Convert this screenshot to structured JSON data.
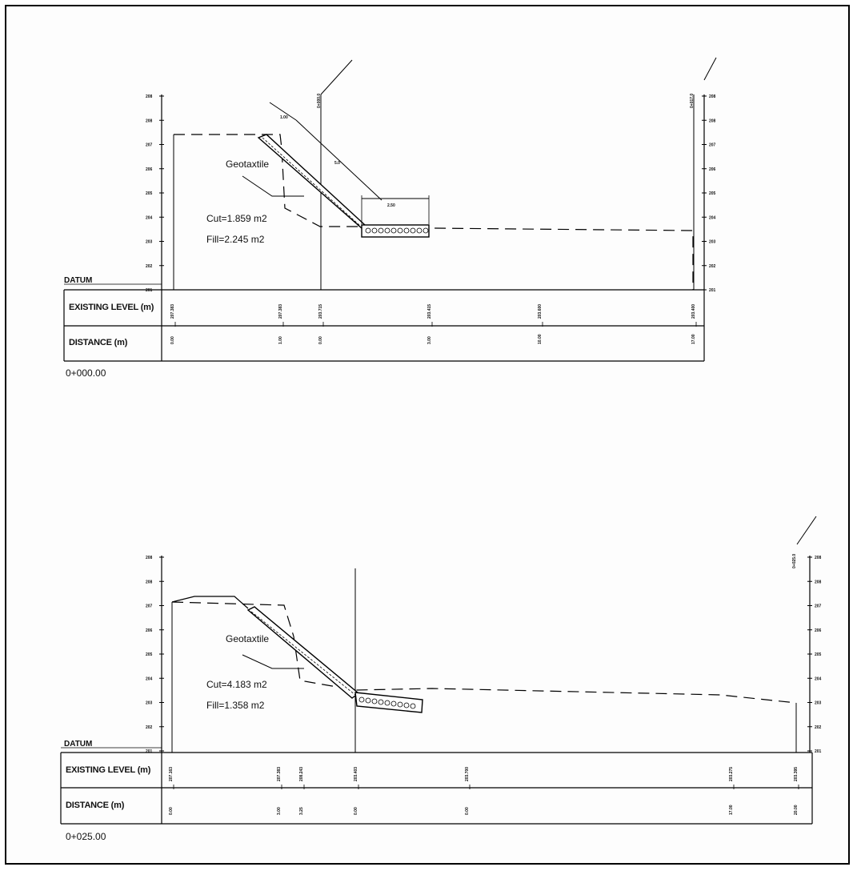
{
  "sections": [
    {
      "chainage": "0+000.00",
      "datum_label": "DATUM",
      "existing_label": "EXISTING LEVEL (m)",
      "distance_label": "DISTANCE (m)",
      "geotextile_label": "Geotaxtile",
      "cut": "Cut=1.859  m2",
      "fill": "Fill=2.245  m2",
      "slope_dims": [
        "1.00",
        "5.0",
        "2.50"
      ],
      "top_right_marks": [
        "0+000.0",
        "0+017.0"
      ],
      "levels": [
        "207.383",
        "207.383",
        "203.715",
        "203.415",
        "203.600",
        "203.400"
      ],
      "distances": [
        "0.00",
        "1.00",
        "0.00",
        "3.00",
        "10.00",
        "17.00"
      ],
      "axis_ticks": [
        "208",
        "208",
        "207",
        "206",
        "205",
        "204",
        "203",
        "202",
        "201"
      ]
    },
    {
      "chainage": "0+025.00",
      "datum_label": "DATUM",
      "existing_label": "EXISTING LEVEL (m)",
      "distance_label": "DISTANCE (m)",
      "geotextile_label": "Geotaxtile",
      "cut": "Cut=4.183  m2",
      "fill": "Fill=1.358  m2",
      "top_right_marks": [
        "0+025.0"
      ],
      "levels": [
        "207.163",
        "207.383",
        "208.243",
        "203.403",
        "203.700",
        "203.275",
        "203.395"
      ],
      "distances": [
        "0.00",
        "3.00",
        "3.25",
        "0.00",
        "0.00",
        "17.00",
        "20.00"
      ],
      "axis_ticks": [
        "208",
        "208",
        "207",
        "206",
        "205",
        "204",
        "203",
        "202",
        "201"
      ]
    }
  ]
}
